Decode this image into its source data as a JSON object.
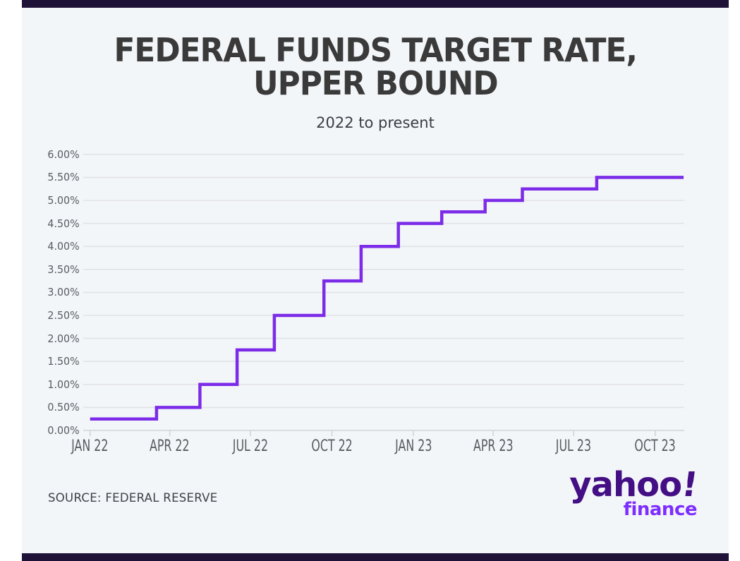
{
  "page": {
    "background": "#ffffff"
  },
  "accent_bars": {
    "color": "#1e1239"
  },
  "card": {
    "background": "#f3f6f9"
  },
  "header": {
    "title_line1": "FEDERAL FUNDS TARGET RATE,",
    "title_line2": "UPPER BOUND",
    "subtitle": "2022 to present",
    "title_color": "#3a3a3a"
  },
  "chart_data": {
    "type": "line",
    "step": true,
    "title": "FEDERAL FUNDS TARGET RATE, UPPER BOUND",
    "subtitle": "2022 to present",
    "xlabel": "",
    "ylabel": "",
    "ylim": [
      0,
      6
    ],
    "xlim": [
      "2022-01-01",
      "2023-11-02"
    ],
    "grid": "horizontal",
    "legend": "none",
    "line_color": "#7c2ce8",
    "grid_color": "#e1e2e6",
    "axis_color": "#d2d4d8",
    "series": [
      {
        "name": "Federal funds target rate, upper bound (%)",
        "points": [
          {
            "date": "2022-01-01",
            "value": 0.25
          },
          {
            "date": "2022-03-17",
            "value": 0.5
          },
          {
            "date": "2022-05-05",
            "value": 1.0
          },
          {
            "date": "2022-06-16",
            "value": 1.75
          },
          {
            "date": "2022-07-28",
            "value": 2.5
          },
          {
            "date": "2022-09-22",
            "value": 3.25
          },
          {
            "date": "2022-11-03",
            "value": 4.0
          },
          {
            "date": "2022-12-15",
            "value": 4.5
          },
          {
            "date": "2023-02-02",
            "value": 4.75
          },
          {
            "date": "2023-03-23",
            "value": 5.0
          },
          {
            "date": "2023-05-04",
            "value": 5.25
          },
          {
            "date": "2023-07-27",
            "value": 5.5
          },
          {
            "date": "2023-11-02",
            "value": 5.5
          }
        ]
      }
    ],
    "x_ticks": [
      {
        "label": "JAN 22",
        "date": "2022-01-01"
      },
      {
        "label": "APR 22",
        "date": "2022-04-01"
      },
      {
        "label": "JUL 22",
        "date": "2022-07-01"
      },
      {
        "label": "OCT 22",
        "date": "2022-10-01"
      },
      {
        "label": "JAN 23",
        "date": "2023-01-01"
      },
      {
        "label": "APR 23",
        "date": "2023-04-01"
      },
      {
        "label": "JUL 23",
        "date": "2023-07-01"
      },
      {
        "label": "OCT 23",
        "date": "2023-10-01"
      }
    ],
    "y_ticks": [
      {
        "label": "6.00%",
        "value": 6.0
      },
      {
        "label": "5.50%",
        "value": 5.5
      },
      {
        "label": "5.00%",
        "value": 5.0
      },
      {
        "label": "4.50%",
        "value": 4.5
      },
      {
        "label": "4.00%",
        "value": 4.0
      },
      {
        "label": "3.50%",
        "value": 3.5
      },
      {
        "label": "3.00%",
        "value": 3.0
      },
      {
        "label": "2.50%",
        "value": 2.5
      },
      {
        "label": "2.00%",
        "value": 2.0
      },
      {
        "label": "1.50%",
        "value": 1.5
      },
      {
        "label": "1.00%",
        "value": 1.0
      },
      {
        "label": "0.50%",
        "value": 0.5
      },
      {
        "label": "0.00%",
        "value": 0.0
      }
    ]
  },
  "footer": {
    "source": "SOURCE: FEDERAL RESERVE",
    "logo": {
      "brand": "yahoo",
      "exclamation": "!",
      "sub": "finance",
      "brand_color": "#440f84",
      "sub_color": "#7d2eff"
    }
  }
}
